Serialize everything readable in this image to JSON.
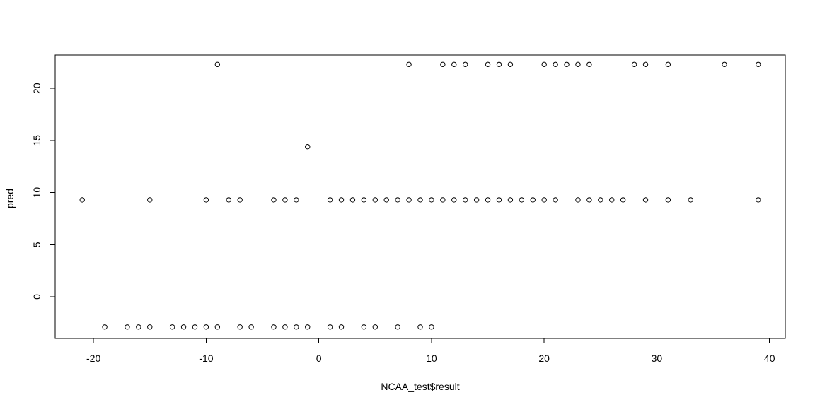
{
  "chart_data": {
    "type": "scatter",
    "title": "",
    "xlabel": "NCAA_test$result",
    "ylabel": "pred",
    "xlim": [
      -23.4,
      41.4
    ],
    "ylim": [
      -4,
      23.2
    ],
    "x_ticks": [
      -20,
      -10,
      0,
      10,
      20,
      30,
      40
    ],
    "y_ticks": [
      0,
      5,
      10,
      15,
      20
    ],
    "grid": false,
    "legend": "none",
    "point_style": "open-circle",
    "colors": {
      "point": "#000000",
      "axis": "#000000",
      "background": "#ffffff"
    },
    "points": [
      {
        "x": -9,
        "y": 22.3
      },
      {
        "x": 8,
        "y": 22.3
      },
      {
        "x": 11,
        "y": 22.3
      },
      {
        "x": 12,
        "y": 22.3
      },
      {
        "x": 13,
        "y": 22.3
      },
      {
        "x": 15,
        "y": 22.3
      },
      {
        "x": 16,
        "y": 22.3
      },
      {
        "x": 17,
        "y": 22.3
      },
      {
        "x": 20,
        "y": 22.3
      },
      {
        "x": 21,
        "y": 22.3
      },
      {
        "x": 22,
        "y": 22.3
      },
      {
        "x": 23,
        "y": 22.3
      },
      {
        "x": 24,
        "y": 22.3
      },
      {
        "x": 28,
        "y": 22.3
      },
      {
        "x": 29,
        "y": 22.3
      },
      {
        "x": 31,
        "y": 22.3
      },
      {
        "x": 36,
        "y": 22.3
      },
      {
        "x": 39,
        "y": 22.3
      },
      {
        "x": -1,
        "y": 14.4
      },
      {
        "x": -21,
        "y": 9.3
      },
      {
        "x": -15,
        "y": 9.3
      },
      {
        "x": -10,
        "y": 9.3
      },
      {
        "x": -8,
        "y": 9.3
      },
      {
        "x": -7,
        "y": 9.3
      },
      {
        "x": -4,
        "y": 9.3
      },
      {
        "x": -3,
        "y": 9.3
      },
      {
        "x": -2,
        "y": 9.3
      },
      {
        "x": 1,
        "y": 9.3
      },
      {
        "x": 2,
        "y": 9.3
      },
      {
        "x": 3,
        "y": 9.3
      },
      {
        "x": 4,
        "y": 9.3
      },
      {
        "x": 5,
        "y": 9.3
      },
      {
        "x": 6,
        "y": 9.3
      },
      {
        "x": 7,
        "y": 9.3
      },
      {
        "x": 8,
        "y": 9.3
      },
      {
        "x": 9,
        "y": 9.3
      },
      {
        "x": 10,
        "y": 9.3
      },
      {
        "x": 11,
        "y": 9.3
      },
      {
        "x": 12,
        "y": 9.3
      },
      {
        "x": 13,
        "y": 9.3
      },
      {
        "x": 14,
        "y": 9.3
      },
      {
        "x": 15,
        "y": 9.3
      },
      {
        "x": 16,
        "y": 9.3
      },
      {
        "x": 17,
        "y": 9.3
      },
      {
        "x": 18,
        "y": 9.3
      },
      {
        "x": 19,
        "y": 9.3
      },
      {
        "x": 20,
        "y": 9.3
      },
      {
        "x": 21,
        "y": 9.3
      },
      {
        "x": 23,
        "y": 9.3
      },
      {
        "x": 24,
        "y": 9.3
      },
      {
        "x": 25,
        "y": 9.3
      },
      {
        "x": 26,
        "y": 9.3
      },
      {
        "x": 27,
        "y": 9.3
      },
      {
        "x": 29,
        "y": 9.3
      },
      {
        "x": 31,
        "y": 9.3
      },
      {
        "x": 33,
        "y": 9.3
      },
      {
        "x": 39,
        "y": 9.3
      },
      {
        "x": -19,
        "y": -2.9
      },
      {
        "x": -17,
        "y": -2.9
      },
      {
        "x": -16,
        "y": -2.9
      },
      {
        "x": -15,
        "y": -2.9
      },
      {
        "x": -13,
        "y": -2.9
      },
      {
        "x": -12,
        "y": -2.9
      },
      {
        "x": -11,
        "y": -2.9
      },
      {
        "x": -10,
        "y": -2.9
      },
      {
        "x": -9,
        "y": -2.9
      },
      {
        "x": -7,
        "y": -2.9
      },
      {
        "x": -6,
        "y": -2.9
      },
      {
        "x": -4,
        "y": -2.9
      },
      {
        "x": -3,
        "y": -2.9
      },
      {
        "x": -2,
        "y": -2.9
      },
      {
        "x": -1,
        "y": -2.9
      },
      {
        "x": 1,
        "y": -2.9
      },
      {
        "x": 2,
        "y": -2.9
      },
      {
        "x": 4,
        "y": -2.9
      },
      {
        "x": 5,
        "y": -2.9
      },
      {
        "x": 7,
        "y": -2.9
      },
      {
        "x": 9,
        "y": -2.9
      },
      {
        "x": 10,
        "y": -2.9
      }
    ]
  }
}
